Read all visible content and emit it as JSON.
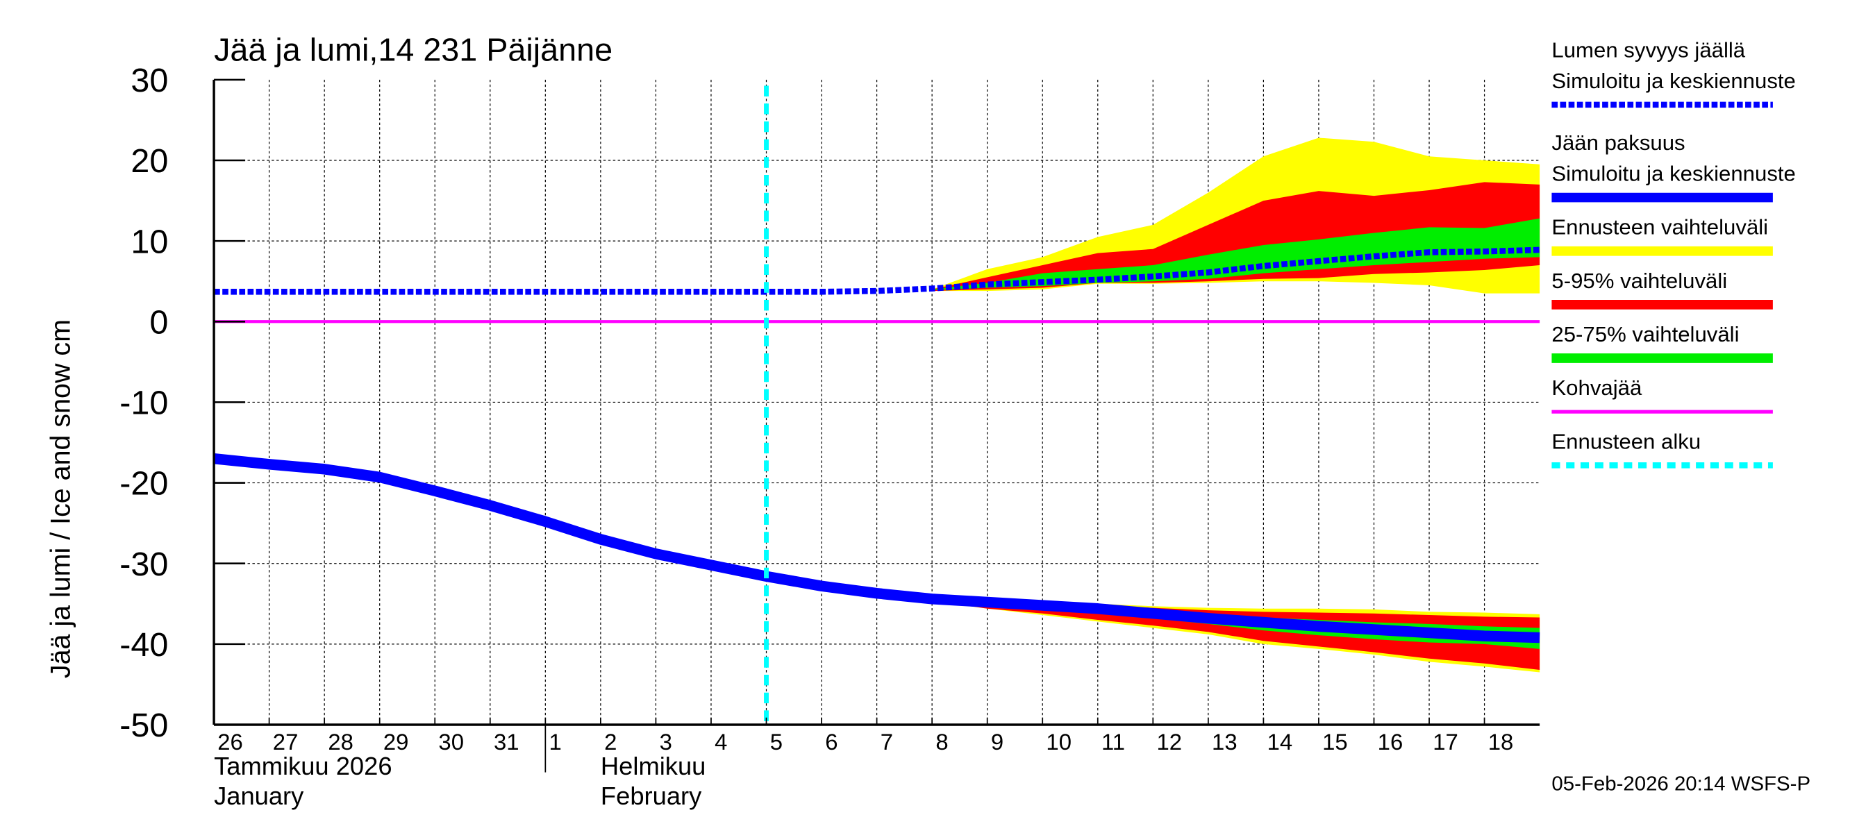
{
  "chart_data": {
    "type": "area",
    "title": "Jää ja lumi,14 231 Päijänne",
    "ylabel": "Jää ja lumi / Ice and snow    cm",
    "ylim": [
      -50,
      30
    ],
    "yticks": [
      "30",
      "20",
      "10",
      "0",
      "-10",
      "-20",
      "-30",
      "-40",
      "-50"
    ],
    "xlim": [
      "2026-01-26",
      "2026-02-19"
    ],
    "xtick_labels": [
      "26",
      "27",
      "28",
      "29",
      "30",
      "31",
      "1",
      "2",
      "3",
      "4",
      "5",
      "6",
      "7",
      "8",
      "9",
      "10",
      "11",
      "12",
      "13",
      "14",
      "15",
      "16",
      "17",
      "18"
    ],
    "month_labels": [
      {
        "fi": "Tammikuu  2026",
        "en": "January"
      },
      {
        "fi": "Helmikuu",
        "en": "February"
      }
    ],
    "grid": true,
    "legend_position": "right",
    "forecast_start": "2026-02-05",
    "kohvajaa": 0,
    "colors": {
      "snow": "#0000ff",
      "ice": "#0000ff",
      "range": "#ffff00",
      "p5_95": "#ff0000",
      "p25_75": "#00ee00",
      "kohvajaa": "#ff00ff",
      "forecast_start": "#00ffff"
    },
    "dates": [
      "2026-01-26",
      "2026-01-27",
      "2026-01-28",
      "2026-01-29",
      "2026-01-30",
      "2026-01-31",
      "2026-02-01",
      "2026-02-02",
      "2026-02-03",
      "2026-02-04",
      "2026-02-05",
      "2026-02-06",
      "2026-02-07",
      "2026-02-08",
      "2026-02-09",
      "2026-02-10",
      "2026-02-11",
      "2026-02-12",
      "2026-02-13",
      "2026-02-14",
      "2026-02-15",
      "2026-02-16",
      "2026-02-17",
      "2026-02-18",
      "2026-02-19"
    ],
    "snow_depth": [
      3.7,
      3.7,
      3.7,
      3.7,
      3.7,
      3.7,
      3.7,
      3.7,
      3.7,
      3.7,
      3.7,
      3.7,
      3.8,
      4.1,
      4.6,
      4.9,
      5.2,
      5.6,
      6.1,
      6.9,
      7.5,
      8.1,
      8.6,
      8.7,
      8.9
    ],
    "ice_thickness": [
      -17,
      -17.7,
      -18.3,
      -19.3,
      -21,
      -22.8,
      -24.8,
      -27,
      -28.8,
      -30.2,
      -31.6,
      -32.8,
      -33.7,
      -34.4,
      -34.8,
      -35.2,
      -35.6,
      -36.2,
      -36.8,
      -37.3,
      -37.8,
      -38.2,
      -38.6,
      -39,
      -39.2
    ],
    "band_dates": [
      "2026-02-08",
      "2026-02-09",
      "2026-02-10",
      "2026-02-11",
      "2026-02-12",
      "2026-02-13",
      "2026-02-14",
      "2026-02-15",
      "2026-02-16",
      "2026-02-17",
      "2026-02-18",
      "2026-02-19"
    ],
    "snow_bands": {
      "range_upper": [
        4,
        6.5,
        8,
        10.5,
        12,
        16,
        20.5,
        22.8,
        22.3,
        20.5,
        20,
        19.5
      ],
      "range_lower": [
        3.8,
        3.8,
        4,
        4.7,
        4.7,
        4.8,
        5,
        5,
        4.8,
        4.5,
        3.5,
        3.5
      ],
      "p95": [
        4,
        5.5,
        7,
        8.5,
        9,
        12,
        15,
        16.2,
        15.6,
        16.3,
        17.3,
        17
      ],
      "p5": [
        3.8,
        4,
        4.2,
        4.8,
        4.8,
        5,
        5.3,
        5.4,
        5.9,
        6.1,
        6.4,
        7
      ],
      "p75": [
        4,
        4.8,
        6,
        6.5,
        7,
        8.3,
        9.5,
        10.2,
        11,
        11.7,
        11.6,
        12.8
      ],
      "p25": [
        3.9,
        4.2,
        4.4,
        4.8,
        5,
        5.3,
        6,
        6.5,
        7,
        7.4,
        7.8,
        8
      ]
    },
    "ice_bands": {
      "range_upper": [
        -34.4,
        -34.6,
        -34.8,
        -35,
        -35.3,
        -35.5,
        -35.6,
        -35.6,
        -35.7,
        -36,
        -36.1,
        -36.3
      ],
      "range_lower": [
        -34.7,
        -35.6,
        -36.4,
        -37.2,
        -38,
        -38.8,
        -40,
        -40.6,
        -41.3,
        -42.2,
        -42.8,
        -43.5
      ],
      "p95": [
        -34.4,
        -34.7,
        -34.9,
        -35.2,
        -35.5,
        -35.8,
        -36,
        -36.1,
        -36.2,
        -36.4,
        -36.6,
        -36.7
      ],
      "p5": [
        -34.6,
        -35.6,
        -36.2,
        -37,
        -37.7,
        -38.5,
        -39.6,
        -40.3,
        -41,
        -41.8,
        -42.4,
        -43.2
      ],
      "p75": [
        -34.4,
        -34.8,
        -35.2,
        -35.6,
        -36,
        -36.4,
        -36.7,
        -37,
        -37.3,
        -37.5,
        -37.8,
        -38
      ],
      "p25": [
        -34.5,
        -35,
        -35.6,
        -36.2,
        -36.8,
        -37.5,
        -38.3,
        -38.9,
        -39.4,
        -39.8,
        -40,
        -40.6
      ]
    },
    "legend": [
      {
        "label": "Lumen syvyys jäällä",
        "label2": "Simuloitu ja keskiennuste",
        "color": "#0000ff",
        "style": "dotted-thick"
      },
      {
        "label": "Jään paksuus",
        "label2": "Simuloitu ja keskiennuste",
        "color": "#0000ff",
        "style": "solid-thick"
      },
      {
        "label": "Ennusteen vaihteluväli",
        "color": "#ffff00",
        "style": "solid-thick"
      },
      {
        "label": "5-95% vaihteluväli",
        "color": "#ff0000",
        "style": "solid-thick"
      },
      {
        "label": "25-75% vaihteluväli",
        "color": "#00ee00",
        "style": "solid-thick"
      },
      {
        "label": "Kohvajää",
        "color": "#ff00ff",
        "style": "solid"
      },
      {
        "label": "Ennusteen alku",
        "color": "#00ffff",
        "style": "dashed"
      }
    ],
    "footer": "05-Feb-2026 20:14 WSFS-P"
  }
}
